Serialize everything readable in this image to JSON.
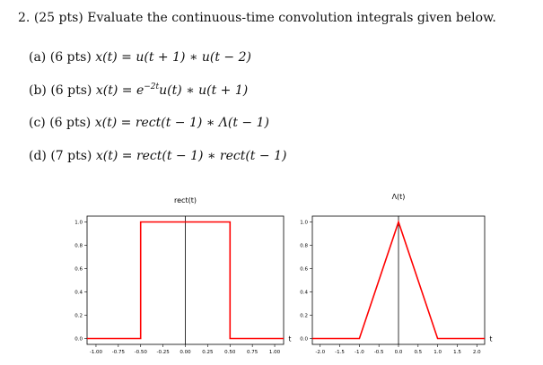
{
  "problem": {
    "number": "2.",
    "points": "(25 pts)",
    "instruction": "Evaluate the continuous-time convolution integrals given below."
  },
  "parts": [
    {
      "label": "(a)",
      "points": "(6 pts)",
      "lhs": "x(t)",
      "eq": "=",
      "rhs": "u(t + 1) ∗ u(t − 2)"
    },
    {
      "label": "(b)",
      "points": "(6 pts)",
      "lhs": "x(t)",
      "eq": "=",
      "rhs_base": "e",
      "rhs_exp": "−2t",
      "rhs_rest": "u(t) ∗ u(t + 1)"
    },
    {
      "label": "(c)",
      "points": "(6 pts)",
      "lhs": "x(t)",
      "eq": "=",
      "rhs": "rect(t − 1) ∗ Λ(t − 1)"
    },
    {
      "label": "(d)",
      "points": "(7 pts)",
      "lhs": "x(t)",
      "eq": "=",
      "rhs": "rect(t − 1) ∗ rect(t − 1)"
    }
  ],
  "chart_data": [
    {
      "type": "line",
      "title": "rect(t)",
      "xlabel": "t",
      "ylabel": "",
      "xlim": [
        -1.1,
        1.1
      ],
      "ylim": [
        -0.05,
        1.05
      ],
      "xticks": [
        "-1.00",
        "-0.75",
        "-0.50",
        "-0.25",
        "0.00",
        "0.25",
        "0.50",
        "0.75",
        "1.00"
      ],
      "xtick_values": [
        -1.0,
        -0.75,
        -0.5,
        -0.25,
        0.0,
        0.25,
        0.5,
        0.75,
        1.0
      ],
      "yticks": [
        "0.0",
        "0.2",
        "0.4",
        "0.6",
        "0.8",
        "1.0"
      ],
      "ytick_values": [
        0.0,
        0.2,
        0.4,
        0.6,
        0.8,
        1.0
      ],
      "series": [
        {
          "color": "#ff0000",
          "x": [
            -1.1,
            -0.5,
            -0.5,
            0.5,
            0.5,
            1.1
          ],
          "y": [
            0,
            0,
            1,
            1,
            0,
            0
          ]
        }
      ],
      "vline_x": 0,
      "grid": false
    },
    {
      "type": "line",
      "title": "Λ(t)",
      "xlabel": "t",
      "ylabel": "",
      "xlim": [
        -2.2,
        2.2
      ],
      "ylim": [
        -0.05,
        1.05
      ],
      "xticks": [
        "-2.0",
        "-1.5",
        "-1.0",
        "-0.5",
        "0.0",
        "0.5",
        "1.0",
        "1.5",
        "2.0"
      ],
      "xtick_values": [
        -2.0,
        -1.5,
        -1.0,
        -0.5,
        0.0,
        0.5,
        1.0,
        1.5,
        2.0
      ],
      "yticks": [
        "0.0",
        "0.2",
        "0.4",
        "0.6",
        "0.8",
        "1.0"
      ],
      "ytick_values": [
        0.0,
        0.2,
        0.4,
        0.6,
        0.8,
        1.0
      ],
      "series": [
        {
          "color": "#ff0000",
          "x": [
            -2.2,
            -1,
            0,
            1,
            2.2
          ],
          "y": [
            0,
            0,
            1,
            0,
            0
          ]
        }
      ],
      "vline_x": 0,
      "grid": false
    }
  ]
}
